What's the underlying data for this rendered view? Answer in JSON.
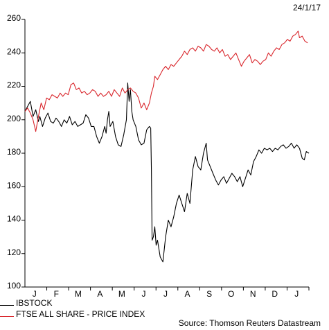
{
  "date_stamp": "24/1/17",
  "source": "Source: Thomson Reuters Datastream",
  "chart_data": {
    "type": "line",
    "ylim": [
      100,
      260
    ],
    "yticks": [
      100,
      120,
      140,
      160,
      180,
      200,
      220,
      240,
      260
    ],
    "month_labels": [
      "J",
      "F",
      "M",
      "A",
      "M",
      "J",
      "J",
      "A",
      "S",
      "O",
      "N",
      "D",
      "J"
    ],
    "series": [
      {
        "name": "IBSTOCK",
        "color": "#000000",
        "points": [
          [
            0,
            205
          ],
          [
            0.2,
            208
          ],
          [
            0.4,
            211
          ],
          [
            0.6,
            202
          ],
          [
            0.8,
            206
          ],
          [
            1.0,
            199
          ],
          [
            1.1,
            202
          ],
          [
            1.3,
            196
          ],
          [
            1.5,
            201
          ],
          [
            1.7,
            204
          ],
          [
            1.9,
            199
          ],
          [
            2.1,
            198
          ],
          [
            2.3,
            201
          ],
          [
            2.5,
            199
          ],
          [
            2.7,
            196
          ],
          [
            2.9,
            200
          ],
          [
            3.1,
            198
          ],
          [
            3.3,
            202
          ],
          [
            3.5,
            197
          ],
          [
            3.7,
            199
          ],
          [
            3.9,
            196
          ],
          [
            4.1,
            197
          ],
          [
            4.3,
            198
          ],
          [
            4.5,
            203
          ],
          [
            4.7,
            201
          ],
          [
            4.9,
            196
          ],
          [
            5.1,
            196
          ],
          [
            5.3,
            190
          ],
          [
            5.5,
            186
          ],
          [
            5.7,
            190
          ],
          [
            5.9,
            196
          ],
          [
            6.0,
            192
          ],
          [
            6.1,
            200
          ],
          [
            6.2,
            205
          ],
          [
            6.3,
            196
          ],
          [
            6.5,
            199
          ],
          [
            6.7,
            190
          ],
          [
            6.9,
            185
          ],
          [
            7.1,
            184
          ],
          [
            7.3,
            191
          ],
          [
            7.5,
            200
          ],
          [
            7.6,
            222
          ],
          [
            7.7,
            211
          ],
          [
            7.8,
            218
          ],
          [
            7.9,
            205
          ],
          [
            8.0,
            200
          ],
          [
            8.2,
            196
          ],
          [
            8.4,
            188
          ],
          [
            8.6,
            185
          ],
          [
            8.8,
            186
          ],
          [
            9.0,
            194
          ],
          [
            9.2,
            196
          ],
          [
            9.3,
            195
          ],
          [
            9.35,
            170
          ],
          [
            9.4,
            128
          ],
          [
            9.5,
            130
          ],
          [
            9.6,
            136
          ],
          [
            9.7,
            125
          ],
          [
            9.8,
            128
          ],
          [
            10.0,
            118
          ],
          [
            10.2,
            115
          ],
          [
            10.4,
            130
          ],
          [
            10.6,
            140
          ],
          [
            10.8,
            136
          ],
          [
            11.0,
            142
          ],
          [
            11.2,
            150
          ],
          [
            11.4,
            155
          ],
          [
            11.6,
            150
          ],
          [
            11.8,
            145
          ],
          [
            12.0,
            156
          ],
          [
            12.2,
            150
          ],
          [
            12.4,
            170
          ],
          [
            12.6,
            178
          ],
          [
            12.8,
            172
          ],
          [
            13.0,
            170
          ],
          [
            13.2,
            180
          ],
          [
            13.4,
            186
          ],
          [
            13.5,
            176
          ],
          [
            13.7,
            172
          ],
          [
            13.9,
            168
          ],
          [
            14.1,
            164
          ],
          [
            14.3,
            161
          ],
          [
            14.5,
            164
          ],
          [
            14.7,
            166
          ],
          [
            14.9,
            162
          ],
          [
            15.1,
            165
          ],
          [
            15.3,
            168
          ],
          [
            15.5,
            166
          ],
          [
            15.7,
            163
          ],
          [
            15.9,
            166
          ],
          [
            16.1,
            160
          ],
          [
            16.3,
            165
          ],
          [
            16.5,
            170
          ],
          [
            16.7,
            167
          ],
          [
            16.9,
            175
          ],
          [
            17.1,
            178
          ],
          [
            17.3,
            182
          ],
          [
            17.5,
            180
          ],
          [
            17.7,
            183
          ],
          [
            17.9,
            182
          ],
          [
            18.1,
            183
          ],
          [
            18.3,
            181
          ],
          [
            18.5,
            183
          ],
          [
            18.7,
            182
          ],
          [
            18.9,
            184
          ],
          [
            19.1,
            185
          ],
          [
            19.3,
            183
          ],
          [
            19.5,
            184
          ],
          [
            19.7,
            186
          ],
          [
            19.9,
            183
          ],
          [
            20.1,
            185
          ],
          [
            20.3,
            183
          ],
          [
            20.5,
            177
          ],
          [
            20.65,
            176
          ],
          [
            20.8,
            181
          ],
          [
            21.0,
            180
          ]
        ]
      },
      {
        "name": "FTSE ALL SHARE - PRICE INDEX",
        "color": "#d9252b",
        "points": [
          [
            0,
            205
          ],
          [
            0.2,
            207
          ],
          [
            0.4,
            204
          ],
          [
            0.6,
            200
          ],
          [
            0.8,
            193
          ],
          [
            1.0,
            202
          ],
          [
            1.2,
            210
          ],
          [
            1.4,
            206
          ],
          [
            1.6,
            213
          ],
          [
            1.8,
            212
          ],
          [
            2.0,
            215
          ],
          [
            2.2,
            214
          ],
          [
            2.4,
            213
          ],
          [
            2.6,
            216
          ],
          [
            2.8,
            214
          ],
          [
            3.0,
            216
          ],
          [
            3.2,
            215
          ],
          [
            3.4,
            221
          ],
          [
            3.6,
            222
          ],
          [
            3.8,
            218
          ],
          [
            4.0,
            219
          ],
          [
            4.2,
            216
          ],
          [
            4.4,
            217
          ],
          [
            4.6,
            215
          ],
          [
            4.8,
            216
          ],
          [
            5.0,
            218
          ],
          [
            5.2,
            217
          ],
          [
            5.4,
            214
          ],
          [
            5.6,
            216
          ],
          [
            5.8,
            214
          ],
          [
            6.0,
            215
          ],
          [
            6.2,
            217
          ],
          [
            6.4,
            214
          ],
          [
            6.6,
            218
          ],
          [
            6.8,
            216
          ],
          [
            7.0,
            214
          ],
          [
            7.2,
            219
          ],
          [
            7.4,
            216
          ],
          [
            7.6,
            218
          ],
          [
            7.8,
            219
          ],
          [
            8.0,
            217
          ],
          [
            8.2,
            216
          ],
          [
            8.4,
            213
          ],
          [
            8.6,
            207
          ],
          [
            8.8,
            210
          ],
          [
            9.0,
            206
          ],
          [
            9.2,
            210
          ],
          [
            9.35,
            216
          ],
          [
            9.5,
            220
          ],
          [
            9.6,
            226
          ],
          [
            9.8,
            224
          ],
          [
            10.0,
            227
          ],
          [
            10.2,
            230
          ],
          [
            10.4,
            232
          ],
          [
            10.6,
            230
          ],
          [
            10.8,
            233
          ],
          [
            11.0,
            232
          ],
          [
            11.2,
            234
          ],
          [
            11.4,
            236
          ],
          [
            11.6,
            238
          ],
          [
            11.8,
            241
          ],
          [
            12.0,
            239
          ],
          [
            12.2,
            242
          ],
          [
            12.4,
            243
          ],
          [
            12.6,
            241
          ],
          [
            12.8,
            244
          ],
          [
            13.0,
            243
          ],
          [
            13.2,
            241
          ],
          [
            13.4,
            245
          ],
          [
            13.6,
            244
          ],
          [
            13.8,
            242
          ],
          [
            14.0,
            241
          ],
          [
            14.2,
            243
          ],
          [
            14.4,
            240
          ],
          [
            14.6,
            242
          ],
          [
            14.8,
            238
          ],
          [
            15.0,
            239
          ],
          [
            15.2,
            236
          ],
          [
            15.4,
            238
          ],
          [
            15.6,
            240
          ],
          [
            15.8,
            236
          ],
          [
            16.0,
            232
          ],
          [
            16.2,
            235
          ],
          [
            16.4,
            237
          ],
          [
            16.6,
            239
          ],
          [
            16.8,
            234
          ],
          [
            17.0,
            236
          ],
          [
            17.2,
            235
          ],
          [
            17.4,
            233
          ],
          [
            17.6,
            235
          ],
          [
            17.8,
            236
          ],
          [
            18.0,
            240
          ],
          [
            18.2,
            238
          ],
          [
            18.4,
            241
          ],
          [
            18.6,
            243
          ],
          [
            18.8,
            242
          ],
          [
            19.0,
            245
          ],
          [
            19.2,
            246
          ],
          [
            19.4,
            248
          ],
          [
            19.6,
            247
          ],
          [
            19.8,
            250
          ],
          [
            20.0,
            251
          ],
          [
            20.2,
            253
          ],
          [
            20.3,
            249
          ],
          [
            20.5,
            250
          ],
          [
            20.7,
            247
          ],
          [
            20.9,
            246
          ]
        ]
      }
    ]
  }
}
